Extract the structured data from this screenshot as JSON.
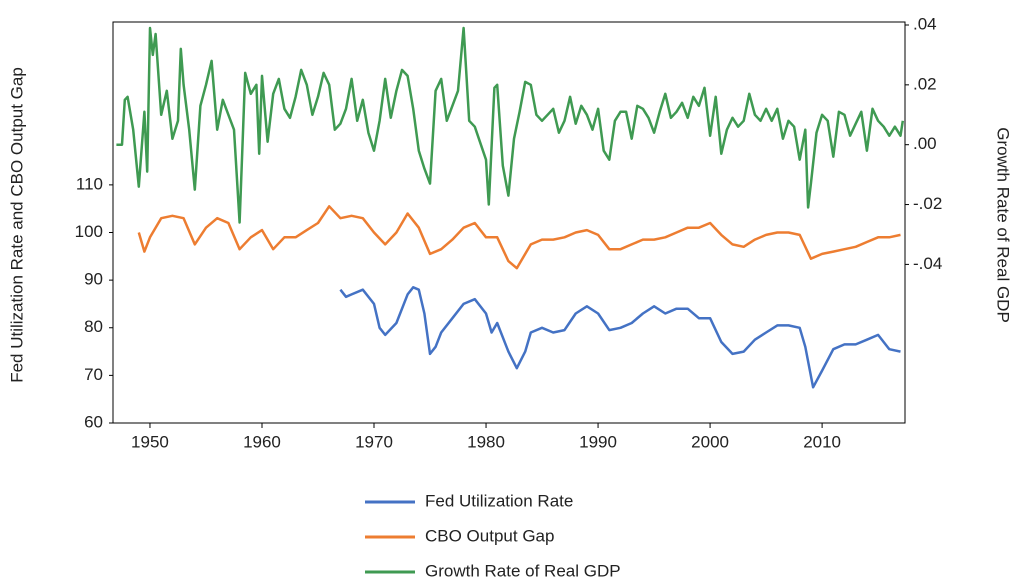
{
  "chart_data": {
    "type": "line",
    "y_label": "Fed Utilization Rate and CBO Output Gap",
    "y2_label": "Growth Rate of Real GDP",
    "xlim": [
      1946.7,
      2017.4
    ],
    "xticks": [
      1950,
      1960,
      1970,
      1980,
      1990,
      2000,
      2010
    ],
    "ylim": [
      60,
      144.2
    ],
    "yticks": [
      60,
      70,
      80,
      90,
      100,
      110
    ],
    "y2lim": [
      -0.093,
      0.041
    ],
    "y2ticks": [
      {
        "value": 0.04,
        "label": ".04"
      },
      {
        "value": 0.02,
        "label": ".02"
      },
      {
        "value": 0,
        "label": ".00"
      },
      {
        "value": -0.02,
        "label": "-.02"
      },
      {
        "value": -0.04,
        "label": "-.04"
      }
    ],
    "legend": "bottom",
    "series": [
      {
        "name": "Fed Utilization Rate",
        "color": "#4472c4",
        "x": [
          1967,
          1967.5,
          1968,
          1969,
          1970,
          1970.5,
          1971,
          1972,
          1973,
          1973.5,
          1974,
          1974.5,
          1975,
          1975.5,
          1976,
          1977,
          1978,
          1979,
          1980,
          1980.5,
          1981,
          1982,
          1982.75,
          1983.5,
          1984,
          1985,
          1986,
          1987,
          1988,
          1989,
          1990,
          1991,
          1992,
          1993,
          1994,
          1995,
          1996,
          1997,
          1998,
          1999,
          2000,
          2001,
          2002,
          2003,
          2004,
          2005,
          2006,
          2007,
          2008,
          2008.5,
          2009.2,
          2010,
          2011,
          2012,
          2013,
          2014,
          2015,
          2016,
          2017
        ],
        "values": [
          88,
          86.5,
          87,
          88,
          85,
          80,
          78.5,
          81,
          87,
          88.5,
          88,
          83,
          74.5,
          76,
          79,
          82,
          85,
          86,
          83,
          79,
          81,
          75,
          71.5,
          75,
          79,
          80,
          79,
          79.5,
          83,
          84.5,
          83,
          79.5,
          80,
          81,
          83,
          84.5,
          83,
          84,
          84,
          82,
          82,
          77,
          74.5,
          75,
          77.5,
          79,
          80.5,
          80.5,
          80,
          76,
          67.5,
          71,
          75.5,
          76.5,
          76.5,
          77.5,
          78.5,
          75.5,
          75
        ]
      },
      {
        "name": "CBO Output Gap",
        "color": "#ed7d31",
        "x": [
          1949,
          1949.5,
          1950,
          1951,
          1952,
          1953,
          1954,
          1955,
          1956,
          1957,
          1958,
          1959,
          1960,
          1961,
          1962,
          1963,
          1964,
          1965,
          1966,
          1967,
          1968,
          1969,
          1970,
          1971,
          1972,
          1973,
          1974,
          1975,
          1976,
          1977,
          1978,
          1979,
          1980,
          1981,
          1982,
          1982.75,
          1984,
          1985,
          1986,
          1987,
          1988,
          1989,
          1990,
          1991,
          1992,
          1993,
          1994,
          1995,
          1996,
          1997,
          1998,
          1999,
          2000,
          2001,
          2002,
          2003,
          2004,
          2005,
          2006,
          2007,
          2008,
          2009,
          2010,
          2011,
          2012,
          2013,
          2014,
          2015,
          2016,
          2017
        ],
        "values": [
          100,
          96,
          99,
          103,
          103.5,
          103,
          97.5,
          101,
          103,
          102,
          96.5,
          99,
          100.5,
          96.5,
          99,
          99,
          100.5,
          102,
          105.5,
          103,
          103.5,
          103,
          100,
          97.5,
          100,
          104,
          101,
          95.5,
          96.5,
          98.5,
          101,
          102,
          99,
          99,
          94,
          92.5,
          97.5,
          98.5,
          98.5,
          99,
          100,
          100.5,
          99.5,
          96.5,
          96.5,
          97.5,
          98.5,
          98.5,
          99,
          100,
          101,
          101,
          102,
          99.5,
          97.5,
          97,
          98.5,
          99.5,
          100,
          100,
          99.5,
          94.5,
          95.5,
          96,
          96.5,
          97,
          98,
          99,
          99,
          99.5
        ]
      },
      {
        "name": "Growth Rate of Real GDP",
        "color": "#3f9a52",
        "axis": "y2",
        "x": [
          1947,
          1947.5,
          1947.75,
          1948,
          1948.5,
          1949,
          1949.5,
          1949.75,
          1950,
          1950.25,
          1950.5,
          1951,
          1951.5,
          1952,
          1952.5,
          1952.75,
          1953,
          1953.5,
          1954,
          1954.5,
          1955,
          1955.5,
          1956,
          1956.5,
          1957,
          1957.5,
          1958,
          1958.5,
          1959,
          1959.5,
          1959.75,
          1960,
          1960.5,
          1961,
          1961.5,
          1962,
          1962.5,
          1963,
          1963.5,
          1964,
          1964.5,
          1965,
          1965.5,
          1966,
          1966.5,
          1967,
          1967.5,
          1968,
          1968.5,
          1969,
          1969.5,
          1970,
          1970.5,
          1971,
          1971.5,
          1972,
          1972.5,
          1973,
          1973.5,
          1974,
          1974.5,
          1975,
          1975.5,
          1976,
          1976.5,
          1977,
          1977.5,
          1978,
          1978.5,
          1979,
          1980,
          1980.25,
          1980.75,
          1981,
          1981.5,
          1982,
          1982.5,
          1983,
          1983.5,
          1984,
          1984.5,
          1985,
          1986,
          1986.5,
          1987,
          1987.5,
          1988,
          1988.5,
          1989,
          1989.5,
          1990,
          1990.5,
          1991,
          1991.5,
          1992,
          1992.5,
          1993,
          1993.5,
          1994,
          1994.5,
          1995,
          1995.5,
          1996,
          1996.5,
          1997,
          1997.5,
          1998,
          1998.5,
          1999,
          1999.5,
          2000,
          2000.5,
          2001,
          2001.5,
          2002,
          2002.5,
          2003,
          2003.5,
          2004,
          2004.5,
          2005,
          2005.5,
          2006,
          2006.5,
          2007,
          2007.5,
          2008,
          2008.5,
          2008.75,
          2009,
          2009.5,
          2010,
          2010.5,
          2011,
          2011.5,
          2012,
          2012.5,
          2013,
          2013.5,
          2014,
          2014.5,
          2015,
          2015.5,
          2016,
          2016.5,
          2017,
          2017.2
        ],
        "values": [
          0,
          0,
          0.015,
          0.016,
          0.005,
          -0.014,
          0.011,
          -0.009,
          0.039,
          0.03,
          0.037,
          0.01,
          0.018,
          0.002,
          0.008,
          0.032,
          0.02,
          0.005,
          -0.015,
          0.013,
          0.02,
          0.028,
          0.005,
          0.015,
          0.01,
          0.005,
          -0.026,
          0.024,
          0.017,
          0.02,
          -0.003,
          0.023,
          0.001,
          0.017,
          0.022,
          0.012,
          0.009,
          0.016,
          0.025,
          0.02,
          0.01,
          0.016,
          0.024,
          0.02,
          0.005,
          0.007,
          0.012,
          0.022,
          0.008,
          0.015,
          0.004,
          -0.002,
          0.008,
          0.022,
          0.009,
          0.018,
          0.025,
          0.023,
          0.012,
          -0.002,
          -0.008,
          -0.013,
          0.018,
          0.022,
          0.008,
          0.013,
          0.018,
          0.039,
          0.008,
          0.006,
          -0.005,
          -0.02,
          0.019,
          0.02,
          -0.007,
          -0.017,
          0.002,
          0.011,
          0.021,
          0.02,
          0.01,
          0.008,
          0.012,
          0.004,
          0.008,
          0.016,
          0.007,
          0.013,
          0.01,
          0.005,
          0.012,
          -0.002,
          -0.005,
          0.008,
          0.011,
          0.011,
          0.002,
          0.013,
          0.012,
          0.009,
          0.004,
          0.011,
          0.017,
          0.009,
          0.011,
          0.014,
          0.009,
          0.016,
          0.013,
          0.019,
          0.003,
          0.016,
          -0.003,
          0.005,
          0.009,
          0.006,
          0.008,
          0.017,
          0.01,
          0.008,
          0.012,
          0.008,
          0.012,
          0.002,
          0.008,
          0.006,
          -0.005,
          0.005,
          -0.021,
          -0.013,
          0.004,
          0.01,
          0.008,
          -0.004,
          0.011,
          0.01,
          0.003,
          0.007,
          0.011,
          -0.002,
          0.012,
          0.008,
          0.006,
          0.003,
          0.006,
          0.003,
          0.008
        ]
      }
    ]
  }
}
